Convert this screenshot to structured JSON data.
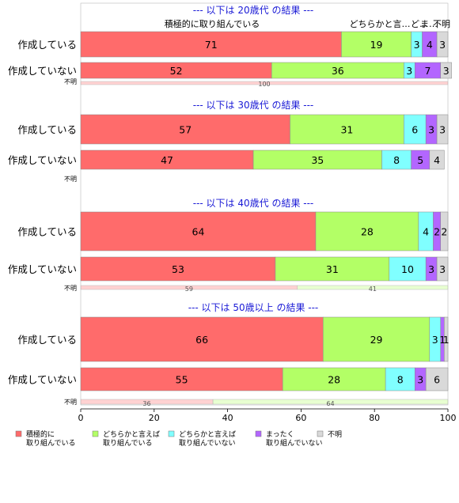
{
  "chart_data": {
    "type": "bar",
    "orientation": "horizontal",
    "stacked": true,
    "xlim": [
      0,
      100
    ],
    "x_ticks": [
      0,
      20,
      40,
      60,
      80,
      100
    ],
    "categories": [
      "積極的に\n取り組んでいる",
      "どちらかと言えば\n取り組んでいる",
      "どちらかと言えば\n取り組んでいない",
      "まったく\n取り組んでいない",
      "不明"
    ],
    "colors": [
      "#ff6b6b",
      "#b3ff66",
      "#80ffff",
      "#b366ff",
      "#d9d9d9"
    ],
    "top_labels": [
      "積極的に取り組んでいる",
      "どちらかと言…",
      "ど…",
      "ま…",
      "不明"
    ],
    "legend_position": "bottom",
    "panels": [
      {
        "title": "--- 以下は 20歳代 の結果 ---",
        "rows": [
          {
            "label": "作成している",
            "values": [
              71,
              19,
              3,
              4,
              3
            ]
          },
          {
            "label": "作成していない",
            "values": [
              52,
              36,
              3,
              7,
              3
            ]
          }
        ],
        "unknown": {
          "label": "不明",
          "values": [
            100
          ],
          "colors": [
            "#ff6b6b"
          ]
        }
      },
      {
        "title": "--- 以下は 30歳代 の結果 ---",
        "rows": [
          {
            "label": "作成している",
            "values": [
              57,
              31,
              6,
              3,
              3
            ]
          },
          {
            "label": "作成していない",
            "values": [
              47,
              35,
              8,
              5,
              4
            ]
          }
        ],
        "unknown": {
          "label": "不明",
          "values": [],
          "colors": []
        }
      },
      {
        "title": "--- 以下は 40歳代 の結果 ---",
        "rows": [
          {
            "label": "作成している",
            "values": [
              64,
              28,
              4,
              2,
              2
            ]
          },
          {
            "label": "作成していない",
            "values": [
              53,
              31,
              10,
              3,
              3
            ]
          }
        ],
        "unknown": {
          "label": "不明",
          "values": [
            59,
            41
          ],
          "colors": [
            "#ff6b6b",
            "#b3ff66"
          ]
        }
      },
      {
        "title": "--- 以下は 50歳以上 の結果 ---",
        "rows": [
          {
            "label": "作成している",
            "values": [
              66,
              29,
              3,
              1,
              1
            ]
          },
          {
            "label": "作成していない",
            "values": [
              55,
              28,
              8,
              3,
              6
            ]
          }
        ],
        "unknown": {
          "label": "不明",
          "values": [
            36,
            64
          ],
          "colors": [
            "#ff6b6b",
            "#b3ff66"
          ]
        }
      }
    ]
  }
}
